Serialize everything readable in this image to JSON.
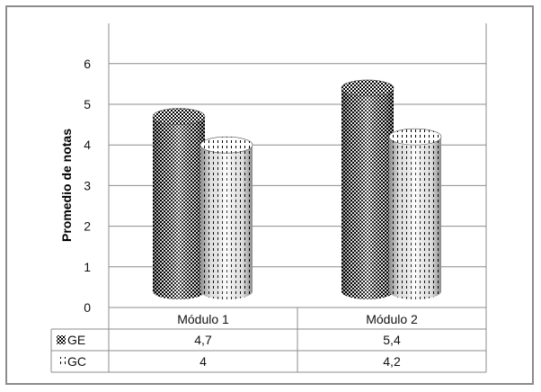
{
  "chart_data": {
    "type": "bar",
    "title": "",
    "xlabel": "",
    "ylabel": "Promedio de notas",
    "categories": [
      "Módulo 1",
      "Módulo 2"
    ],
    "series": [
      {
        "name": "GE",
        "values": [
          4.7,
          5.4
        ],
        "value_labels": [
          "4,7",
          "5,4"
        ],
        "pattern": "dense-checker"
      },
      {
        "name": "GC",
        "values": [
          4.0,
          4.2
        ],
        "value_labels": [
          "4",
          "4,2"
        ],
        "pattern": "sparse-dots"
      }
    ],
    "ylim": [
      0,
      6
    ],
    "yticks": [
      0,
      1,
      2,
      3,
      4,
      5,
      6
    ],
    "grid": true,
    "style": "3d-cylinder",
    "data_table": true,
    "colors": {
      "gridline": "#8c8c8c",
      "frame": "#8c8c8c"
    }
  }
}
